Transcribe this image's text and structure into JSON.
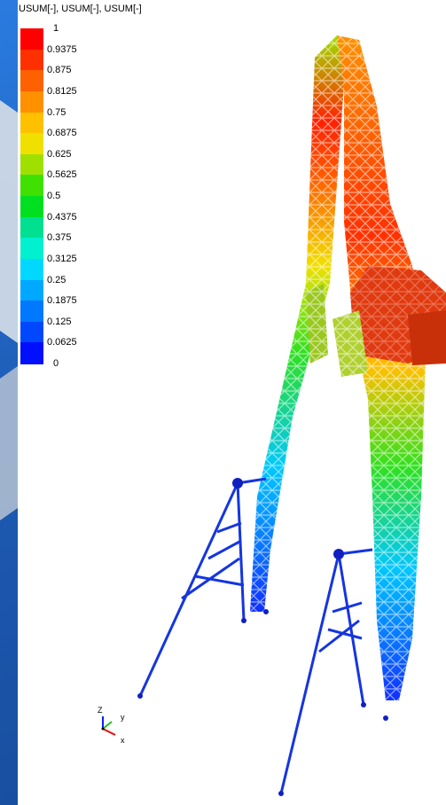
{
  "legend": {
    "title": "USUM[-], USUM[-], USUM[-]",
    "levels": [
      "1",
      "0.9375",
      "0.875",
      "0.8125",
      "0.75",
      "0.6875",
      "0.625",
      "0.5625",
      "0.5",
      "0.4375",
      "0.375",
      "0.3125",
      "0.25",
      "0.1875",
      "0.125",
      "0.0625",
      "0"
    ],
    "colors": [
      "#ff0000",
      "#ff3000",
      "#ff6000",
      "#ff9000",
      "#ffc000",
      "#f0e000",
      "#a0e000",
      "#40e000",
      "#00e020",
      "#00e090",
      "#00f0d0",
      "#00d8ff",
      "#00a8ff",
      "#0078ff",
      "#0048ff",
      "#0010ff"
    ]
  },
  "triad": {
    "z": "Z",
    "y": "y",
    "x": "x"
  }
}
